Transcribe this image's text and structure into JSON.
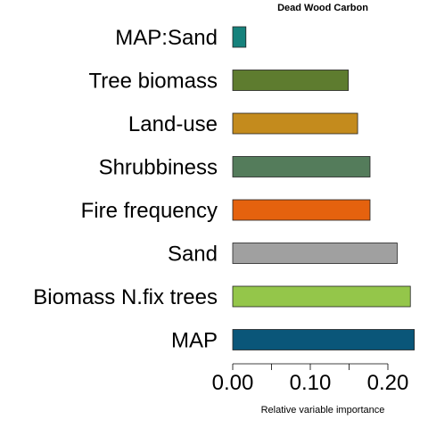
{
  "chart_data": {
    "type": "bar",
    "orientation": "horizontal",
    "title": "Dead Wood Carbon",
    "xlabel": "Relative variable importance",
    "ylabel": "",
    "categories": [
      "MAP:Sand",
      "Tree biomass",
      "Land-use",
      "Shrubbiness",
      "Fire frequency",
      "Sand",
      "Biomass N.fix trees",
      "MAP"
    ],
    "values": [
      0.017,
      0.149,
      0.161,
      0.177,
      0.177,
      0.212,
      0.229,
      0.234
    ],
    "colors": [
      "#16827c",
      "#5e7c2f",
      "#c48b1d",
      "#547c5b",
      "#e5620e",
      "#a0a0a0",
      "#94c64a",
      "#0a5679"
    ],
    "xlim": [
      0,
      0.25
    ],
    "x_ticks_major": [
      0.0,
      0.1,
      0.2
    ],
    "x_tick_labels": [
      "0.00",
      "0.10",
      "0.20"
    ],
    "x_ticks_minor": [
      0.05,
      0.15
    ],
    "grid": false,
    "legend": "none"
  }
}
